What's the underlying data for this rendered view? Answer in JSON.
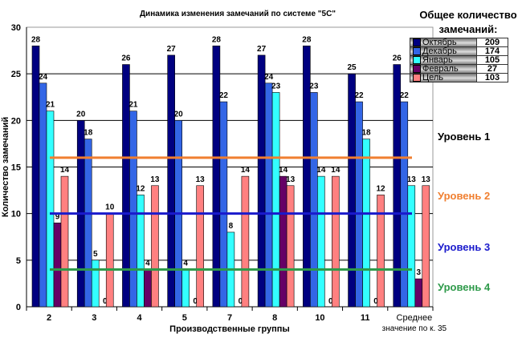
{
  "chart_data": {
    "type": "bar",
    "title": "Динамика изменения замечаний по системе \"5С\"",
    "xlabel": "Производственные группы",
    "ylabel": "Количество замечаний",
    "ylim": [
      0,
      30
    ],
    "yticks": [
      0,
      5,
      10,
      15,
      20,
      25,
      30
    ],
    "grid": true,
    "categories": [
      "2",
      "3",
      "4",
      "5",
      "7",
      "8",
      "10",
      "11",
      "Среднее значение по к. 35"
    ],
    "series": [
      {
        "name": "Октябрь",
        "color": "#000080",
        "total": "209",
        "values": [
          28,
          20,
          26,
          27,
          28,
          27,
          28,
          25,
          26
        ]
      },
      {
        "name": "Декабрь",
        "color": "#3366e6",
        "total": "174",
        "values": [
          24,
          18,
          21,
          20,
          22,
          24,
          23,
          22,
          22
        ]
      },
      {
        "name": "Январь",
        "color": "#33ffff",
        "total": "105",
        "values": [
          21,
          5,
          12,
          4,
          8,
          23,
          14,
          18,
          13
        ]
      },
      {
        "name": "Февраль",
        "color": "#660066",
        "total": "27",
        "values": [
          9,
          0,
          4,
          0,
          0,
          14,
          0,
          0,
          3
        ]
      },
      {
        "name": "Цель",
        "color": "#ff8080",
        "total": "103",
        "values": [
          14,
          10,
          13,
          13,
          14,
          13,
          14,
          12,
          13
        ]
      }
    ],
    "levels": [
      {
        "name": "Уровень 1",
        "color": "#000000",
        "value": null
      },
      {
        "name": "Уровень 2",
        "color": "#f07f30",
        "value": 16
      },
      {
        "name": "Уровень 3",
        "color": "#1a1acc",
        "value": 10
      },
      {
        "name": "Уровень 4",
        "color": "#2e9a4a",
        "value": 4
      }
    ],
    "legend_title": "Общее количество замечаний:",
    "legend_placement": "top-right"
  }
}
